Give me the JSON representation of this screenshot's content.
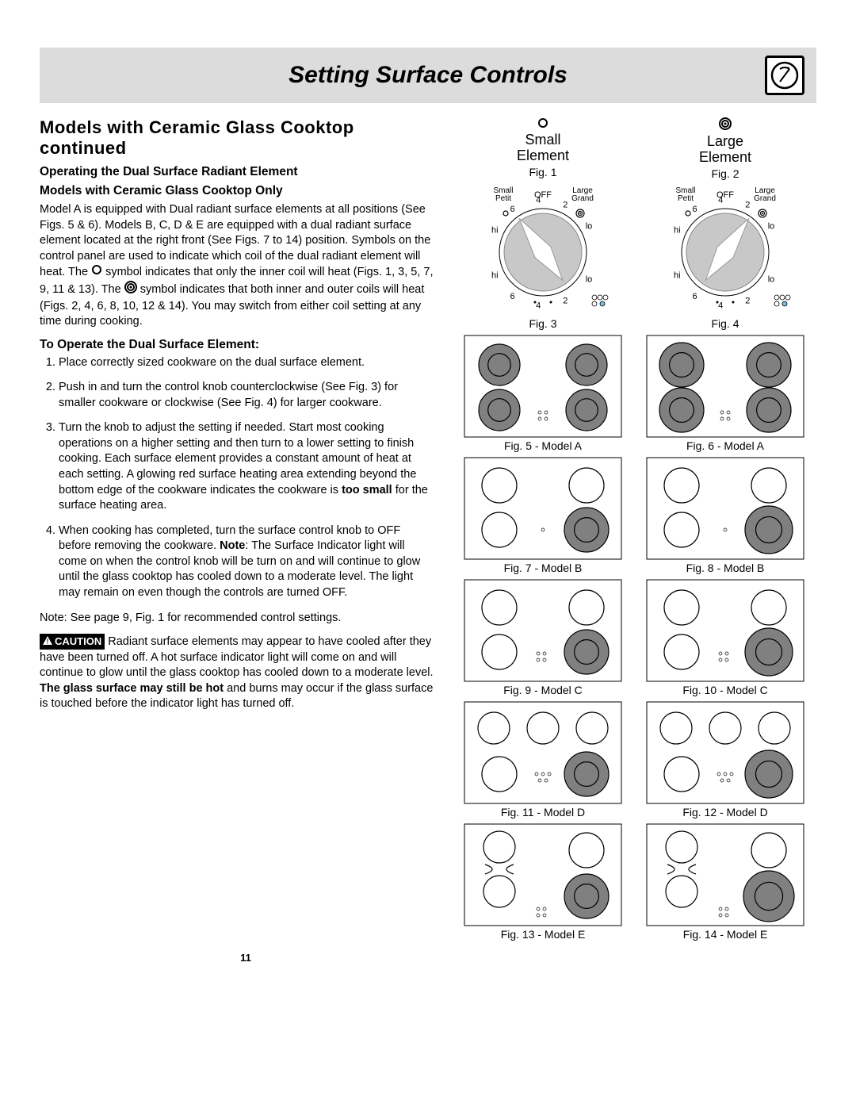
{
  "header": {
    "title": "Setting Surface Controls"
  },
  "subtitle": "Models with Ceramic Glass Cooktop continued",
  "sub2a": "Operating the Dual Surface Radiant Element",
  "sub2b": "Models with Ceramic Glass Cooktop Only",
  "para1a": "Model A is equipped with Dual radiant surface elements at all positions (See Figs. 5 & 6). Models B, C, D & E are equipped with a dual radiant surface element located at the right front (See Figs. 7 to 14) position. Symbols on the control panel are used to indicate which coil of the dual radiant element will heat. The ",
  "para1b": " symbol indicates that only the inner coil will heat (Figs. 1, 3, 5, 7, 9, 11 & 13). The ",
  "para1c": " symbol indicates that both inner and outer coils will heat (Figs. 2, 4, 6, 8, 10, 12 & 14). You may switch from either coil setting at any time during cooking.",
  "sub3": "To Operate the Dual Surface Element:",
  "steps": [
    "Place correctly sized cookware on the dual surface element.",
    "Push in and turn the control knob counterclockwise (See Fig. 3) for smaller cookware or clockwise (See Fig. 4) for larger cookware.",
    "Turn the knob to adjust the setting if needed. Start most cooking operations on a higher setting and then turn to a lower setting to finish cooking. Each surface element provides a constant amount of heat at each setting. A glowing red surface heating area extending beyond the bottom edge of the cookware indicates the cookware is ",
    "When cooking has completed, turn the surface control knob to OFF before removing the cookware. "
  ],
  "step3b": "too small",
  "step3c": " for the surface heating area.",
  "step4b": "Note",
  "step4c": ": The Surface Indicator light will come on when the control knob will be turn on and will continue to glow until the glass cooktop has cooled down to a moderate level. The light may remain on even though the controls are turned OFF.",
  "note": "Note: See page 9, Fig. 1 for recommended control settings.",
  "cautionLabel": "CAUTION",
  "cautionText1": " Radiant surface elements may appear to have cooled after they have been turned off. A hot surface indicator light will come on and will continue to glow until the glass cooktop has cooled down to a moderate level. ",
  "cautionBold": "The glass surface may still be hot",
  "cautionText2": " and burns may occur if the glass surface is touched before the indicator light has turned off.",
  "knobs": {
    "small": {
      "title1": "Small",
      "title2": "Element",
      "fig": "Fig. 1",
      "fig2": "Fig. 3"
    },
    "large": {
      "title1": "Large",
      "title2": "Element",
      "fig": "Fig. 2",
      "fig2": "Fig. 4"
    },
    "labels": {
      "smallTop": "Small",
      "petit": "Petit",
      "off": "OFF",
      "largeTop": "Large",
      "grand": "Grand",
      "hi": "hi",
      "lo": "lo",
      "n2": "2",
      "n4": "4",
      "n6": "6"
    }
  },
  "cooktops": {
    "a1": "Fig. 5 - Model A",
    "a2": "Fig. 6 - Model A",
    "b1": "Fig. 7 - Model B",
    "b2": "Fig. 8 - Model B",
    "c1": "Fig. 9 - Model C",
    "c2": "Fig. 10 - Model C",
    "d1": "Fig. 11 - Model D",
    "d2": "Fig. 12 - Model D",
    "e1": "Fig. 13 - Model E",
    "e2": "Fig. 14 - Model E"
  },
  "pageNum": "11",
  "colors": {
    "headerBg": "#dcdcdc",
    "fill": "#808080",
    "stroke": "#000",
    "bg": "#fff"
  }
}
